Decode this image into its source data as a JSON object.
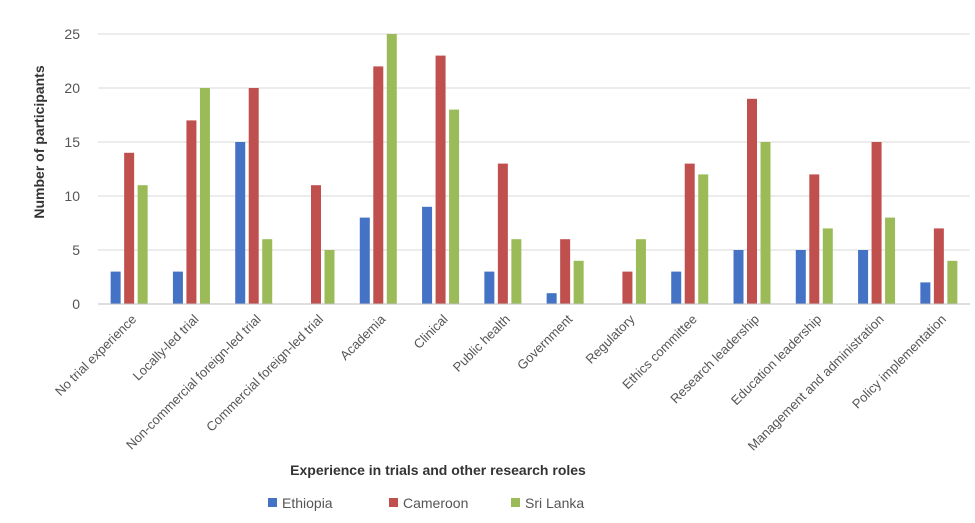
{
  "chart_data": {
    "type": "bar",
    "title": "",
    "xlabel": "Experience  in trials and other research roles",
    "ylabel": "Number of participants",
    "ylim": [
      0,
      25
    ],
    "yticks": [
      0,
      5,
      10,
      15,
      20,
      25
    ],
    "grid": true,
    "legend_position": "bottom",
    "categories": [
      "No trial experience",
      "Locally-led trial",
      "Non-commercial foreign-led trial",
      "Commercial foreign-led trial",
      "Academia",
      "Clinical",
      "Public health",
      "Government",
      "Regulatory",
      "Ethics committee",
      "Research leadership",
      "Education leadership",
      "Management and administration",
      "Policy implementation"
    ],
    "series": [
      {
        "name": "Ethiopia",
        "color": "#4472C4",
        "values": [
          3,
          3,
          15,
          0,
          8,
          9,
          3,
          1,
          0,
          3,
          5,
          5,
          5,
          2
        ]
      },
      {
        "name": "Cameroon",
        "color": "#C0504D",
        "values": [
          14,
          17,
          20,
          11,
          22,
          23,
          13,
          6,
          3,
          13,
          19,
          12,
          15,
          7
        ]
      },
      {
        "name": "Sri Lanka",
        "color": "#9BBB59",
        "values": [
          11,
          20,
          6,
          5,
          25,
          18,
          6,
          4,
          6,
          12,
          15,
          7,
          8,
          4
        ]
      }
    ]
  }
}
